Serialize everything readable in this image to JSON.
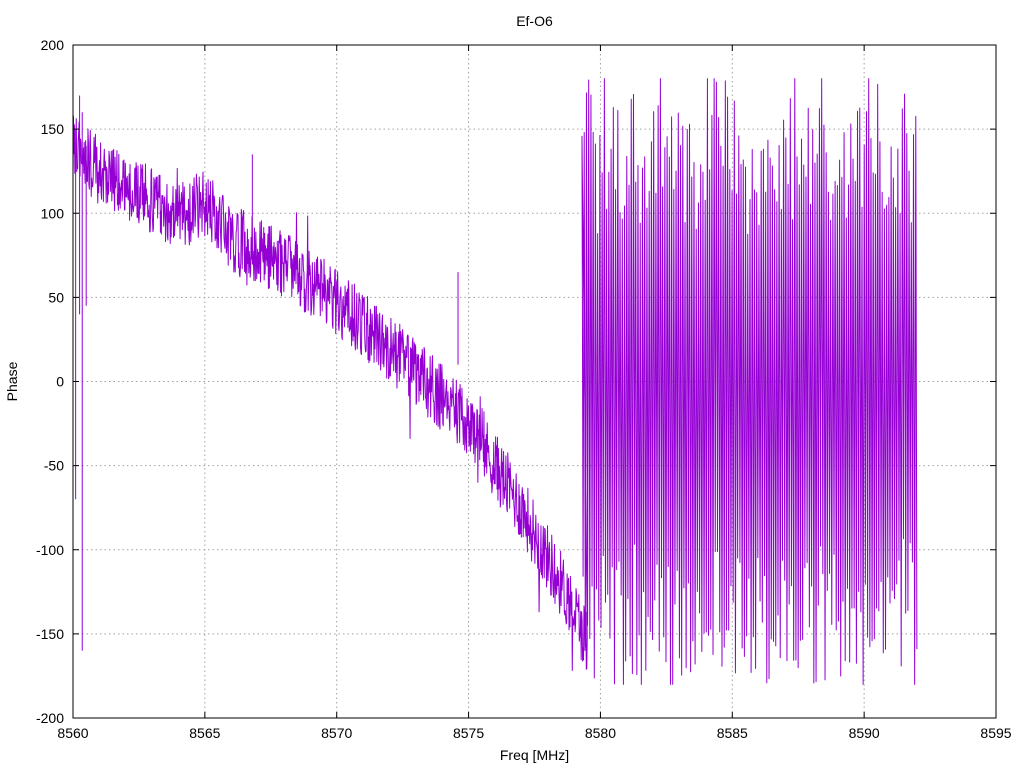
{
  "chart_data": {
    "type": "line",
    "title": "Ef-O6",
    "xlabel": "Freq [MHz]",
    "ylabel": "Phase",
    "xlim": [
      8560,
      8595
    ],
    "ylim": [
      -200,
      200
    ],
    "xticks": [
      8560,
      8565,
      8570,
      8575,
      8580,
      8585,
      8590,
      8595
    ],
    "yticks": [
      -200,
      -150,
      -100,
      -50,
      0,
      50,
      100,
      150,
      200
    ],
    "grid": true,
    "legend": "none",
    "series": [
      {
        "color": "#9400d3",
        "trend": {
          "x": [
            8560.0,
            8561.0,
            8562.0,
            8563.0,
            8564.0,
            8565.0,
            8566.0,
            8567.0,
            8568.0,
            8569.0,
            8570.0,
            8571.0,
            8572.0,
            8573.0,
            8574.0,
            8575.0,
            8576.0,
            8577.0,
            8578.0,
            8579.0,
            8579.5
          ],
          "y": [
            140,
            125,
            115,
            108,
            98,
            106,
            85,
            78,
            70,
            58,
            48,
            33,
            20,
            5,
            -10,
            -25,
            -50,
            -75,
            -105,
            -135,
            -155
          ],
          "noise": 20
        },
        "segments": [
          {
            "x": 8560.1,
            "y": [
              150,
              -70
            ]
          },
          {
            "x": 8560.25,
            "y": [
              170,
              40
            ]
          },
          {
            "x": 8560.35,
            "y": [
              160,
              -160
            ]
          },
          {
            "x": 8560.5,
            "y": [
              140,
              45
            ]
          },
          {
            "x": 8574.6,
            "y": [
              65,
              10
            ]
          },
          {
            "x": 8566.8,
            "y": [
              135,
              70
            ]
          }
        ],
        "wrapped": {
          "x_range": [
            8579.3,
            8592.0
          ],
          "y_range": [
            -180,
            180
          ],
          "spikes": 150
        }
      }
    ]
  }
}
